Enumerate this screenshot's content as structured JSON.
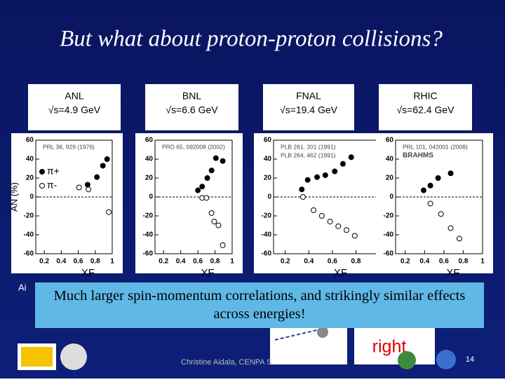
{
  "slide": {
    "title": "But what about proton-proton collisions?",
    "callout": "Much larger spin-momentum correlations, and strikingly similar effects across energies!",
    "cut_text": "Ai",
    "right_label": "right",
    "footer": "Christine Aidala, CENPA S",
    "page": "14"
  },
  "chart_data": [
    {
      "type": "scatter",
      "title": "ANL",
      "subtitle": "√s=4.9 GeV",
      "annotations": [
        "PRL 36, 929 (1976)"
      ],
      "ylabel": "AN (%)",
      "xlabel": "XF",
      "xlim": [
        0.1,
        1.0
      ],
      "xticks": [
        0.2,
        0.4,
        0.6,
        0.8,
        1
      ],
      "ylim": [
        -60,
        60
      ],
      "yticks": [
        -60,
        -40,
        -20,
        0,
        20,
        40,
        60
      ],
      "series": [
        {
          "name": "π+",
          "color": "#000000",
          "x": [
            0.71,
            0.82,
            0.89,
            0.94
          ],
          "values": [
            13,
            21,
            33,
            40
          ]
        },
        {
          "name": "π-",
          "color": "#ffffff",
          "x": [
            0.61,
            0.72,
            0.96
          ],
          "values": [
            10,
            8,
            -16
          ]
        }
      ]
    },
    {
      "type": "scatter",
      "title": "BNL",
      "subtitle": "√s=6.6 GeV",
      "annotations": [
        "PRD 65, 092008 (2002)"
      ],
      "xlabel": "XF",
      "xlim": [
        0.1,
        1.0
      ],
      "xticks": [
        0.2,
        0.4,
        0.6,
        0.8,
        1
      ],
      "ylim": [
        -60,
        60
      ],
      "yticks": [
        -60,
        -40,
        -20,
        0,
        20,
        40,
        60
      ],
      "series": [
        {
          "color": "#000000",
          "x": [
            0.6,
            0.65,
            0.71,
            0.76,
            0.81,
            0.89
          ],
          "values": [
            7,
            11,
            20,
            28,
            41,
            38
          ]
        },
        {
          "color": "#ffffff",
          "x": [
            0.65,
            0.7,
            0.76,
            0.79,
            0.84,
            0.89
          ],
          "values": [
            -1,
            -1,
            -17,
            -26,
            -30,
            -51
          ]
        }
      ]
    },
    {
      "type": "scatter",
      "title": "FNAL",
      "subtitle": "√s=19.4 GeV",
      "annotations": [
        "PLB 261, 201 (1991)",
        "PLB 264, 462 (1991)"
      ],
      "xlabel": "XF",
      "xlim": [
        0.1,
        1.0
      ],
      "xticks": [
        0.2,
        0.4,
        0.6,
        0.8,
        1
      ],
      "ylim": [
        -60,
        60
      ],
      "yticks": [
        -60,
        -40,
        -20,
        0,
        20,
        40,
        60
      ],
      "series": [
        {
          "color": "#000000",
          "x": [
            0.34,
            0.39,
            0.47,
            0.54,
            0.62,
            0.69,
            0.76
          ],
          "values": [
            8,
            18,
            21,
            23,
            27,
            35,
            42
          ]
        },
        {
          "color": "#ffffff",
          "x": [
            0.35,
            0.44,
            0.51,
            0.58,
            0.65,
            0.72,
            0.79
          ],
          "values": [
            0,
            -14,
            -20,
            -26,
            -31,
            -35,
            -41
          ]
        }
      ]
    },
    {
      "type": "scatter",
      "title": "RHIC",
      "subtitle": "√s=62.4 GeV",
      "annotations": [
        "PRL 101, 042001 (2008)",
        "BRAHMS"
      ],
      "xlabel": "XF",
      "xlim": [
        0.1,
        1.0
      ],
      "xticks": [
        0.2,
        0.4,
        0.6,
        0.8,
        1
      ],
      "ylim": [
        -60,
        60
      ],
      "yticks": [
        -60,
        -40,
        -20,
        0,
        20,
        40,
        60
      ],
      "series": [
        {
          "color": "#000000",
          "x": [
            0.39,
            0.46,
            0.54,
            0.67
          ],
          "values": [
            7,
            12,
            20,
            25
          ]
        },
        {
          "color": "#ffffff",
          "x": [
            0.46,
            0.57,
            0.67,
            0.76
          ],
          "values": [
            -7,
            -18,
            -33,
            -44
          ]
        }
      ]
    }
  ]
}
